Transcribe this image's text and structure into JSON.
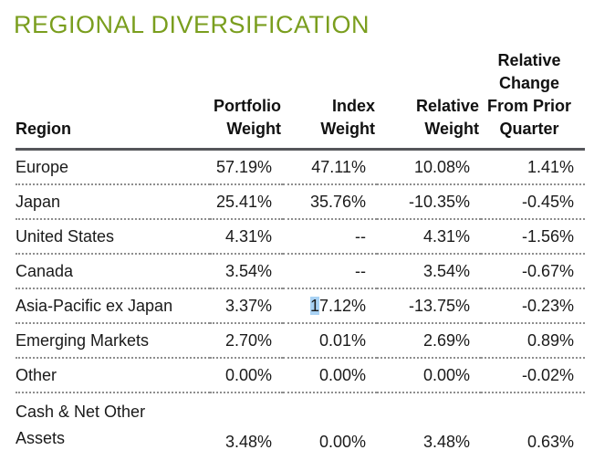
{
  "title": "REGIONAL DIVERSIFICATION",
  "colors": {
    "title_green": "#7A9E1E",
    "rule_dark": "#55565A",
    "dotted_gray": "#8E8E8E",
    "selection_blue": "#A9D2F4",
    "text": "#1A1A1A"
  },
  "table": {
    "headers": {
      "region": "Region",
      "portfolio_weight": "Portfolio\nWeight",
      "index_weight": "Index\nWeight",
      "relative_weight": "Relative\nWeight",
      "relative_change": "Relative\nChange\nFrom Prior\nQuarter"
    },
    "rows": [
      {
        "region": "Europe",
        "portfolio_weight": "57.19%",
        "index_weight": "47.11%",
        "relative_weight": "10.08%",
        "relative_change": "1.41%"
      },
      {
        "region": "Japan",
        "portfolio_weight": "25.41%",
        "index_weight": "35.76%",
        "relative_weight": "-10.35%",
        "relative_change": "-0.45%"
      },
      {
        "region": "United States",
        "portfolio_weight": "4.31%",
        "index_weight": "--",
        "relative_weight": "4.31%",
        "relative_change": "-1.56%"
      },
      {
        "region": "Canada",
        "portfolio_weight": "3.54%",
        "index_weight": "--",
        "relative_weight": "3.54%",
        "relative_change": "-0.67%"
      },
      {
        "region": "Asia-Pacific ex Japan",
        "portfolio_weight": "3.37%",
        "index_weight_highlight": "1",
        "index_weight_rest": "7.12%",
        "relative_weight": "-13.75%",
        "relative_change": "-0.23%"
      },
      {
        "region": "Emerging Markets",
        "portfolio_weight": "2.70%",
        "index_weight": "0.01%",
        "relative_weight": "2.69%",
        "relative_change": "0.89%"
      },
      {
        "region": "Other",
        "portfolio_weight": "0.00%",
        "index_weight": "0.00%",
        "relative_weight": "0.00%",
        "relative_change": "-0.02%"
      },
      {
        "region": "Cash & Net Other\nAssets",
        "portfolio_weight": "3.48%",
        "index_weight": "0.00%",
        "relative_weight": "3.48%",
        "relative_change": "0.63%"
      }
    ]
  }
}
